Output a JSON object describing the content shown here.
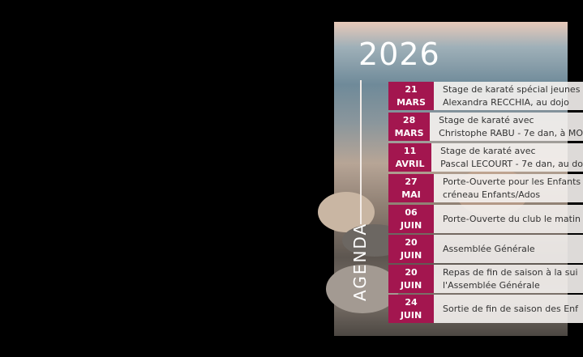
{
  "year": "2026",
  "section": "AGENDA",
  "colors": {
    "accent": "#a3164f"
  },
  "events": [
    {
      "day": "21",
      "month": "MARS",
      "line1": "Stage de karaté spécial jeunes",
      "line2": "Alexandra RECCHIA, au dojo"
    },
    {
      "day": "28",
      "month": "MARS",
      "line1": "Stage de karaté avec",
      "line2": "Christophe RABU - 7e dan, à MO"
    },
    {
      "day": "11",
      "month": "AVRIL",
      "line1": "Stage de karaté avec",
      "line2": "Pascal LECOURT - 7e dan, au do"
    },
    {
      "day": "27",
      "month": "MAI",
      "line1": "Porte-Ouverte pour les Enfants",
      "line2": "créneau Enfants/Ados"
    },
    {
      "day": "06",
      "month": "JUIN",
      "line1": "Porte-Ouverte du club le matin",
      "line2": ""
    },
    {
      "day": "20",
      "month": "JUIN",
      "line1": "Assemblée Générale",
      "line2": ""
    },
    {
      "day": "20",
      "month": "JUIN",
      "line1": "Repas de fin de saison à la sui",
      "line2": "l'Assemblée Générale"
    },
    {
      "day": "24",
      "month": "JUIN",
      "line1": "Sortie de fin de saison des Enf",
      "line2": ""
    }
  ]
}
